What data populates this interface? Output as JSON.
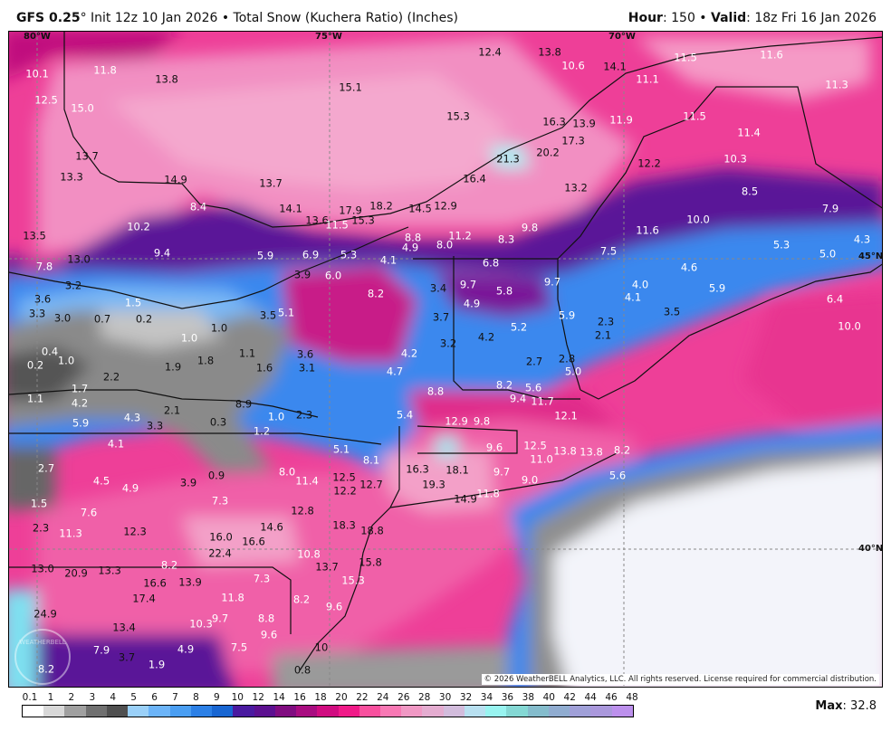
{
  "header": {
    "model": "GFS 0.25",
    "degree": "°",
    "init": " Init 12z 10 Jan 2026 • Total Snow (Kuchera Ratio) (Inches)",
    "hour_label": "Hour",
    "hour_value": ": 150 • ",
    "valid_label": "Valid",
    "valid_value": ": 18z Fri 16 Jan 2026"
  },
  "map": {
    "coords": {
      "lon80": "80°W",
      "lon75": "75°W",
      "lon70": "70°W",
      "lat45": "45°N",
      "lat40": "40°N"
    },
    "colors": {
      "base": "#ee3f98",
      "light_pink": "#f28fc2",
      "purple": "#5a1598",
      "blue": "#3a88ee",
      "light_blue": "#7ab8f5",
      "gray": "#8a8a8a",
      "ocean_white": "#f3f4fa"
    },
    "watermark": "WEATHERBELL",
    "copyright": "© 2026 WeatherBELL Analytics, LLC. All rights reserved. License required for commercial distribution.",
    "labels": [
      "10.1",
      "11.8",
      "13.8",
      "12.5",
      "15.0",
      "15.1",
      "12.4",
      "13.8",
      "10.6",
      "14.1",
      "11.5",
      "11.6",
      "11.1",
      "11.3",
      "15.3",
      "16.3",
      "13.9",
      "11.9",
      "11.5",
      "11.4",
      "13.7",
      "21.3",
      "20.2",
      "17.3",
      "10.3",
      "12.2",
      "13.3",
      "14.9",
      "13.7",
      "16.4",
      "13.2",
      "8.5",
      "7.9",
      "8.4",
      "14.1",
      "17.9",
      "18.2",
      "14.5",
      "12.9",
      "13.6",
      "11.5",
      "15.3",
      "10.0",
      "10.2",
      "8.8",
      "11.2",
      "9.8",
      "8.3",
      "11.6",
      "13.5",
      "4.9",
      "8.0",
      "7.5",
      "5.3",
      "5.0",
      "4.3",
      "13.0",
      "9.4",
      "5.9",
      "6.9",
      "5.3",
      "4.1",
      "7.8",
      "6.8",
      "4.6",
      "3.9",
      "6.0",
      "9.7",
      "9.7",
      "4.0",
      "5.9",
      "3.6",
      "3.2",
      "3.4",
      "5.8",
      "4.1",
      "6.4",
      "1.5",
      "8.2",
      "4.9",
      "3.3",
      "3.0",
      "0.7",
      "0.2",
      "5.1",
      "3.5",
      "3.7",
      "5.2",
      "5.9",
      "2.3",
      "3.5",
      "10.0",
      "1.0",
      "1.0",
      "4.2",
      "3.2",
      "2.1",
      "0.4",
      "0.2",
      "1.0",
      "1.1",
      "1.8",
      "4.2",
      "2.7",
      "2.8",
      "5.0",
      "1.9",
      "1.6",
      "3.6",
      "3.1",
      "4.7",
      "2.2",
      "1.7",
      "8.2",
      "5.6",
      "1.1",
      "8.8",
      "9.4",
      "11.7",
      "4.2",
      "2.1",
      "8.9",
      "12.1",
      "4.3",
      "5.9",
      "3.3",
      "0.3",
      "1.0",
      "2.3",
      "5.4",
      "12.9",
      "9.8",
      "1.2",
      "4.1",
      "5.1",
      "9.6",
      "12.5",
      "13.8",
      "13.8",
      "8.2",
      "11.0",
      "8.1",
      "16.3",
      "9.7",
      "8.0",
      "2.7",
      "4.5",
      "11.4",
      "12.5",
      "12.7",
      "19.3",
      "18.1",
      "5.6",
      "9.0",
      "3.9",
      "0.9",
      "4.9",
      "12.2",
      "7.3",
      "1.5",
      "7.6",
      "12.8",
      "14.9",
      "11.8",
      "18.3",
      "18.8",
      "14.6",
      "2.3",
      "11.3",
      "12.3",
      "16.0",
      "16.6",
      "22.4",
      "10.8",
      "8.2",
      "15.8",
      "13.0",
      "20.9",
      "13.3",
      "13.7",
      "16.6",
      "13.9",
      "7.3",
      "15.3",
      "17.4",
      "11.8",
      "8.2",
      "9.6",
      "24.9",
      "9.7",
      "8.8",
      "10.3",
      "13.4",
      "9.6",
      "7.9",
      "3.7",
      "4.9",
      "7.5",
      "10",
      "8.2",
      "1.9",
      "0.8"
    ]
  },
  "colorbar": {
    "labels": [
      "0.1",
      "1",
      "2",
      "3",
      "4",
      "5",
      "6",
      "7",
      "8",
      "9",
      "10",
      "12",
      "14",
      "16",
      "18",
      "20",
      "22",
      "24",
      "26",
      "28",
      "30",
      "32",
      "34",
      "36",
      "38",
      "40",
      "42",
      "44",
      "46",
      "48"
    ],
    "colors": [
      "#ffffff",
      "#d8d8d8",
      "#a0a0a0",
      "#707070",
      "#505050",
      "#9ad0f8",
      "#6cb4f8",
      "#4a9ef2",
      "#2c80e6",
      "#1866d2",
      "#4a1aa0",
      "#5c1090",
      "#800c80",
      "#a80c80",
      "#d00c80",
      "#f01a88",
      "#f8509e",
      "#f878b4",
      "#f098c4",
      "#e4acd0",
      "#d2bcdc",
      "#b8e0f0",
      "#98f4f0",
      "#84d8d4",
      "#84bccc",
      "#90acd0",
      "#a0a0d8",
      "#aa98dc",
      "#bc90ec"
    ],
    "max_label": "Max",
    "max_value": ": 32.8"
  }
}
